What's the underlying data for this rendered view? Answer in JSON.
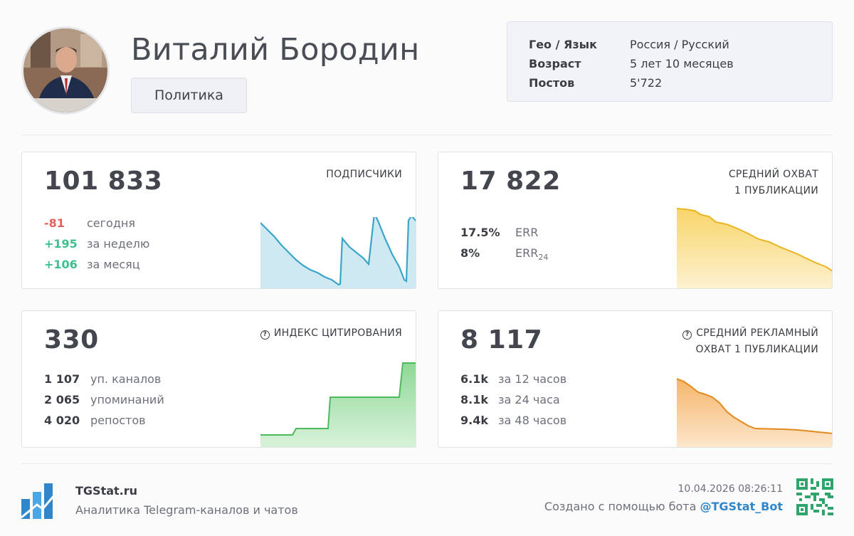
{
  "profile": {
    "name": "Виталий Бородин",
    "category": "Политика"
  },
  "info": {
    "rows": [
      {
        "key": "Гео / Язык",
        "value": "Россия / Русский"
      },
      {
        "key": "Возраст",
        "value": "5 лет 10 месяцев"
      },
      {
        "key": "Постов",
        "value": "5'722"
      }
    ]
  },
  "subscribers": {
    "value": "101 833",
    "label": "ПОДПИСЧИКИ",
    "rows": [
      {
        "amount": "-81",
        "text": "сегодня",
        "color": "#e0625e"
      },
      {
        "amount": "+195",
        "text": "за неделю",
        "color": "#3dbf8e"
      },
      {
        "amount": "+106",
        "text": "за месяц",
        "color": "#3dbf8e"
      }
    ]
  },
  "reach": {
    "value": "17 822",
    "label_line1": "СРЕДНИЙ ОХВАТ",
    "label_line2": "1 ПУБЛИКАЦИИ",
    "rows": [
      {
        "amount": "17.5%",
        "text": "ERR"
      },
      {
        "amount": "8%",
        "text": "ERR",
        "sub": "24"
      }
    ]
  },
  "citation": {
    "value": "330",
    "label": "ИНДЕКС ЦИТИРОВАНИЯ",
    "rows": [
      {
        "amount": "1 107",
        "text": "уп. каналов"
      },
      {
        "amount": "2 065",
        "text": "упоминаний"
      },
      {
        "amount": "4 020",
        "text": "репостов"
      }
    ]
  },
  "ad_reach": {
    "value": "8 117",
    "label_line1": "СРЕДНИЙ РЕКЛАМНЫЙ",
    "label_line2": "ОХВАТ 1 ПУБЛИКАЦИИ",
    "rows": [
      {
        "amount": "6.1k",
        "text": "за 12 часов"
      },
      {
        "amount": "8.1k",
        "text": "за 24 часа"
      },
      {
        "amount": "9.4k",
        "text": "за 48 часов"
      }
    ]
  },
  "footer": {
    "brand": "TGStat.ru",
    "tagline": "Аналитика Telegram-каналов и чатов",
    "timestamp": "10.04.2026 08:26:11",
    "credit_prefix": "Создано с помощью бота ",
    "bot": "@TGStat_Bot"
  },
  "colors": {
    "subscribers_line": "#3aa5c9",
    "reach_line": "#e9b420",
    "citation_line": "#4cbb5e",
    "ad_reach_line": "#e38a1f",
    "brand_blue": "#2f86cb"
  }
}
